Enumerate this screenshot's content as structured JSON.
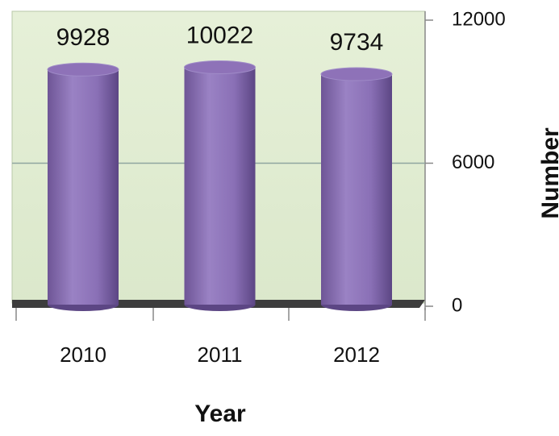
{
  "chart_data": {
    "type": "bar",
    "x_label": "Year",
    "y_label": "Number",
    "categories": [
      "2010",
      "2011",
      "2012"
    ],
    "values": [
      9928,
      10022,
      9734
    ],
    "color": "#8e72b8",
    "ylim": [
      0,
      12000
    ],
    "yticks": [
      0,
      6000,
      12000
    ],
    "grid": true
  }
}
